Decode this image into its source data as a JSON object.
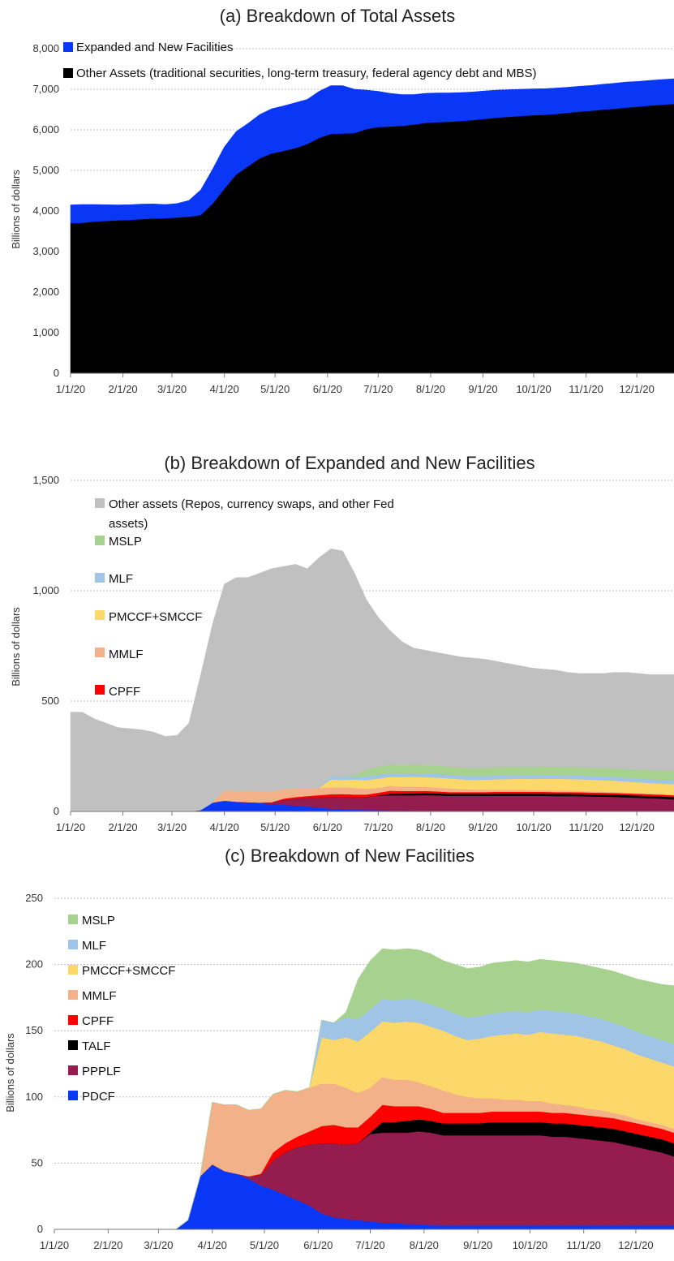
{
  "chart_data": [
    {
      "type": "area",
      "title": "(a) Breakdown of Total Assets",
      "ylabel": "Billions of dollars",
      "xlabel": "",
      "ylim": [
        0,
        8000
      ],
      "yticks": [
        "0",
        "1,000",
        "2,000",
        "3,000",
        "4,000",
        "5,000",
        "6,000",
        "7,000",
        "8,000"
      ],
      "xticks": [
        "1/1/20",
        "2/1/20",
        "3/1/20",
        "4/1/20",
        "5/1/20",
        "6/1/20",
        "7/1/20",
        "8/1/20",
        "9/1/20",
        "10/1/20",
        "11/1/20",
        "12/1/20"
      ],
      "grid": true,
      "legend_position": "top-left",
      "x": [
        "1/1/20",
        "1/8/20",
        "1/15/20",
        "1/22/20",
        "1/29/20",
        "2/5/20",
        "2/12/20",
        "2/19/20",
        "2/26/20",
        "3/4/20",
        "3/11/20",
        "3/18/20",
        "3/25/20",
        "4/1/20",
        "4/8/20",
        "4/15/20",
        "4/22/20",
        "4/29/20",
        "5/6/20",
        "5/13/20",
        "5/20/20",
        "5/27/20",
        "6/3/20",
        "6/10/20",
        "6/17/20",
        "6/24/20",
        "7/1/20",
        "7/8/20",
        "7/15/20",
        "7/22/20",
        "7/29/20",
        "8/5/20",
        "8/12/20",
        "8/19/20",
        "8/26/20",
        "9/2/20",
        "9/9/20",
        "9/16/20",
        "9/23/20",
        "9/30/20",
        "10/7/20",
        "10/14/20",
        "10/21/20",
        "10/28/20",
        "11/4/20",
        "11/11/20",
        "11/18/20",
        "11/25/20",
        "12/2/20",
        "12/9/20",
        "12/16/20",
        "12/23/20"
      ],
      "series": [
        {
          "name": "Other Assets (traditional securities, long-term treasury, federal agency debt and MBS)",
          "color": "#000000",
          "values": [
            3700,
            3710,
            3740,
            3755,
            3770,
            3780,
            3800,
            3815,
            3820,
            3840,
            3860,
            3900,
            4180,
            4550,
            4900,
            5100,
            5300,
            5420,
            5480,
            5550,
            5650,
            5800,
            5900,
            5910,
            5920,
            6020,
            6070,
            6080,
            6100,
            6130,
            6170,
            6190,
            6200,
            6220,
            6240,
            6270,
            6300,
            6320,
            6340,
            6360,
            6370,
            6390,
            6420,
            6450,
            6470,
            6500,
            6520,
            6550,
            6570,
            6600,
            6620,
            6640
          ]
        },
        {
          "name": "Expanded and New Facilities",
          "color": "#0a36f5",
          "values": [
            450,
            450,
            420,
            400,
            380,
            375,
            370,
            360,
            340,
            345,
            400,
            620,
            850,
            1030,
            1060,
            1060,
            1080,
            1100,
            1110,
            1120,
            1100,
            1150,
            1190,
            1180,
            1080,
            960,
            880,
            820,
            770,
            740,
            730,
            720,
            710,
            700,
            695,
            690,
            680,
            670,
            660,
            650,
            645,
            640,
            630,
            625,
            625,
            625,
            630,
            630,
            625,
            620,
            620,
            620
          ]
        }
      ]
    },
    {
      "type": "area",
      "title": "(b) Breakdown of Expanded and New Facilities",
      "ylabel": "Billions of dollars",
      "xlabel": "",
      "ylim": [
        0,
        1500
      ],
      "yticks": [
        "0",
        "500",
        "1,000",
        "1,500"
      ],
      "xticks": [
        "1/1/20",
        "2/1/20",
        "3/1/20",
        "4/1/20",
        "5/1/20",
        "6/1/20",
        "7/1/20",
        "8/1/20",
        "9/1/20",
        "10/1/20",
        "11/1/20",
        "12/1/20"
      ],
      "grid": true,
      "legend_position": "top-left",
      "legend_entries": [
        {
          "label": "Other assets (Repos, currency swaps, and other Fed",
          "label2": "assets)",
          "color": "#c0c0c0"
        },
        {
          "label": "MSLP",
          "color": "#a6d18e"
        },
        {
          "label": "MLF",
          "color": "#9fc4e6"
        },
        {
          "label": "PMCCF+SMCCF",
          "color": "#fcd86a"
        },
        {
          "label": "MMLF",
          "color": "#f2b188"
        },
        {
          "label": "CPFF",
          "color": "#ff0000"
        }
      ]
    },
    {
      "type": "area",
      "title": "(c) Breakdown of New Facilities",
      "ylabel": "Billions of dollars",
      "xlabel": "",
      "ylim": [
        0,
        250
      ],
      "yticks": [
        "0",
        "50",
        "100",
        "150",
        "200",
        "250"
      ],
      "xticks": [
        "1/1/20",
        "2/1/20",
        "3/1/20",
        "4/1/20",
        "5/1/20",
        "6/1/20",
        "7/1/20",
        "8/1/20",
        "9/1/20",
        "10/1/20",
        "11/1/20",
        "12/1/20"
      ],
      "grid": true,
      "legend_position": "top-left",
      "x": [
        "1/1/20",
        "1/8/20",
        "1/15/20",
        "1/22/20",
        "1/29/20",
        "2/5/20",
        "2/12/20",
        "2/19/20",
        "2/26/20",
        "3/4/20",
        "3/11/20",
        "3/18/20",
        "3/25/20",
        "4/1/20",
        "4/8/20",
        "4/15/20",
        "4/22/20",
        "4/29/20",
        "5/6/20",
        "5/13/20",
        "5/20/20",
        "5/27/20",
        "6/3/20",
        "6/10/20",
        "6/17/20",
        "6/24/20",
        "7/1/20",
        "7/8/20",
        "7/15/20",
        "7/22/20",
        "7/29/20",
        "8/5/20",
        "8/12/20",
        "8/19/20",
        "8/26/20",
        "9/2/20",
        "9/9/20",
        "9/16/20",
        "9/23/20",
        "9/30/20",
        "10/7/20",
        "10/14/20",
        "10/21/20",
        "10/28/20",
        "11/4/20",
        "11/11/20",
        "11/18/20",
        "11/25/20",
        "12/2/20",
        "12/9/20",
        "12/16/20",
        "12/23/20"
      ],
      "series": [
        {
          "name": "PDCF",
          "color": "#0a36f5",
          "values": [
            0,
            0,
            0,
            0,
            0,
            0,
            0,
            0,
            0,
            0,
            0,
            7,
            40,
            49,
            44,
            42,
            38,
            33,
            30,
            26,
            22,
            18,
            12,
            9,
            8,
            7,
            6,
            5,
            5,
            4,
            4,
            3,
            3,
            3,
            3,
            3,
            3,
            3,
            3,
            3,
            3,
            3,
            3,
            3,
            3,
            3,
            3,
            3,
            3,
            3,
            3,
            3
          ]
        },
        {
          "name": "PPPLF",
          "color": "#951c4e",
          "values": [
            0,
            0,
            0,
            0,
            0,
            0,
            0,
            0,
            0,
            0,
            0,
            0,
            0,
            0,
            0,
            0,
            2,
            8,
            22,
            32,
            40,
            46,
            53,
            56,
            56,
            58,
            66,
            68,
            68,
            69,
            70,
            70,
            68,
            68,
            68,
            68,
            68,
            68,
            68,
            68,
            68,
            67,
            67,
            66,
            65,
            64,
            63,
            61,
            59,
            57,
            55,
            52
          ]
        },
        {
          "name": "TALF",
          "color": "#000000",
          "values": [
            0,
            0,
            0,
            0,
            0,
            0,
            0,
            0,
            0,
            0,
            0,
            0,
            0,
            0,
            0,
            0,
            0,
            0,
            0,
            0,
            0,
            0,
            0,
            0,
            0,
            0,
            1,
            8,
            8,
            9,
            9,
            9,
            9,
            9,
            9,
            9,
            10,
            10,
            10,
            10,
            10,
            10,
            10,
            10,
            10,
            10,
            10,
            10,
            10,
            10,
            10,
            10
          ]
        },
        {
          "name": "CPFF",
          "color": "#ff0000",
          "values": [
            0,
            0,
            0,
            0,
            0,
            0,
            0,
            0,
            0,
            0,
            0,
            0,
            0,
            0,
            0,
            0,
            0,
            1,
            6,
            7,
            8,
            10,
            13,
            14,
            13,
            12,
            12,
            13,
            12,
            11,
            10,
            9,
            8,
            8,
            8,
            8,
            8,
            8,
            8,
            8,
            8,
            8,
            8,
            8,
            8,
            8,
            8,
            8,
            8,
            8,
            8,
            8
          ]
        },
        {
          "name": "MMLF",
          "color": "#f2b188",
          "values": [
            0,
            0,
            0,
            0,
            0,
            0,
            0,
            0,
            0,
            0,
            0,
            0,
            0,
            47,
            50,
            52,
            50,
            49,
            44,
            40,
            34,
            33,
            32,
            31,
            30,
            26,
            22,
            21,
            20,
            20,
            18,
            17,
            17,
            14,
            12,
            11,
            10,
            9,
            9,
            8,
            8,
            7,
            6,
            6,
            5,
            5,
            4,
            4,
            3,
            3,
            3,
            3
          ]
        },
        {
          "name": "PMCCF+SMCCF",
          "color": "#fcd86a",
          "values": [
            0,
            0,
            0,
            0,
            0,
            0,
            0,
            0,
            0,
            0,
            0,
            0,
            0,
            0,
            0,
            0,
            0,
            0,
            0,
            0,
            0,
            0,
            35,
            33,
            38,
            39,
            42,
            42,
            43,
            44,
            45,
            45,
            45,
            44,
            43,
            45,
            47,
            49,
            50,
            50,
            52,
            53,
            53,
            53,
            53,
            52,
            51,
            50,
            49,
            48,
            47,
            47
          ]
        },
        {
          "name": "MLF",
          "color": "#9fc4e6",
          "values": [
            0,
            0,
            0,
            0,
            0,
            0,
            0,
            0,
            0,
            0,
            0,
            0,
            0,
            0,
            0,
            0,
            0,
            0,
            0,
            0,
            0,
            0,
            13,
            13,
            15,
            17,
            17,
            17,
            17,
            17,
            17,
            17,
            17,
            17,
            17,
            17,
            17,
            17,
            17,
            17,
            17,
            17,
            17,
            17,
            17,
            17,
            17,
            17,
            17,
            17,
            17,
            17
          ]
        },
        {
          "name": "MSLP",
          "color": "#a6d18e",
          "values": [
            0,
            0,
            0,
            0,
            0,
            0,
            0,
            0,
            0,
            0,
            0,
            0,
            0,
            0,
            0,
            0,
            0,
            0,
            0,
            0,
            0,
            0,
            0,
            0,
            4,
            30,
            37,
            38,
            38,
            38,
            38,
            38,
            36,
            37,
            37,
            37,
            38,
            38,
            38,
            38,
            38,
            38,
            38,
            38,
            38,
            38,
            39,
            39,
            40,
            41,
            42,
            44
          ]
        }
      ]
    }
  ]
}
